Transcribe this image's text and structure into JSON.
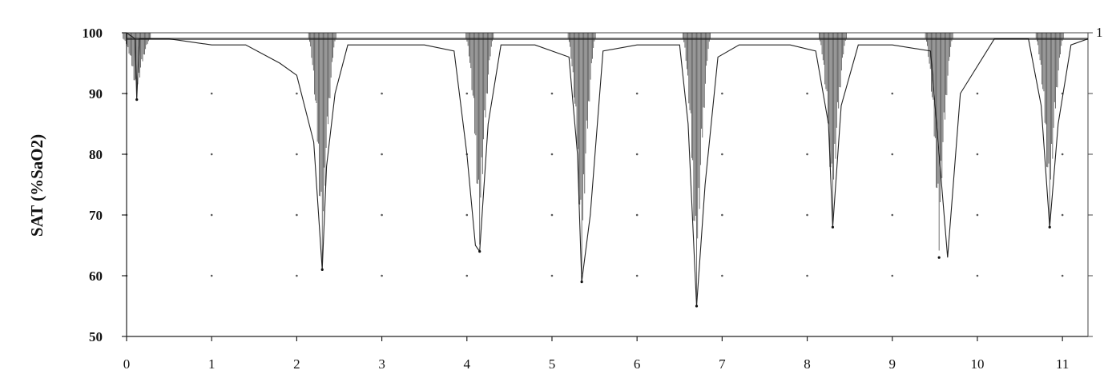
{
  "chart_data": {
    "type": "line",
    "title": "",
    "xlabel": "",
    "ylabel": "SAT (%SaO2)",
    "xlim": [
      0,
      11.3
    ],
    "ylim": [
      50,
      100
    ],
    "x_ticks": [
      "0",
      "1",
      "2",
      "3",
      "4",
      "5",
      "6",
      "7",
      "8",
      "9",
      "10",
      "11"
    ],
    "y_ticks": [
      "50",
      "60",
      "70",
      "80",
      "90",
      "100"
    ],
    "right_axis_label": "1",
    "grid": "dotted",
    "baseline_saturation": 99,
    "desaturation_events": [
      {
        "x": 0.12,
        "min": 89
      },
      {
        "x": 2.3,
        "min": 61
      },
      {
        "x": 4.15,
        "min": 64
      },
      {
        "x": 5.35,
        "min": 59
      },
      {
        "x": 6.7,
        "min": 55
      },
      {
        "x": 8.3,
        "min": 68
      },
      {
        "x": 9.55,
        "min": 63
      },
      {
        "x": 10.85,
        "min": 68
      }
    ],
    "series": [
      {
        "name": "SAT",
        "x": [
          0,
          0.1,
          0.12,
          0.15,
          0.5,
          1.0,
          1.4,
          1.8,
          2.0,
          2.2,
          2.3,
          2.35,
          2.45,
          2.6,
          3.0,
          3.5,
          3.85,
          4.0,
          4.1,
          4.15,
          4.25,
          4.4,
          4.8,
          5.2,
          5.3,
          5.35,
          5.45,
          5.6,
          6.0,
          6.5,
          6.6,
          6.7,
          6.8,
          6.95,
          7.2,
          7.8,
          8.1,
          8.25,
          8.3,
          8.4,
          8.6,
          9.0,
          9.45,
          9.55,
          9.65,
          9.8,
          10.2,
          10.6,
          10.75,
          10.85,
          10.95,
          11.1,
          11.3
        ],
        "values": [
          100,
          99,
          89,
          99,
          99,
          98,
          98,
          95,
          93,
          82,
          61,
          78,
          90,
          98,
          98,
          98,
          97,
          80,
          65,
          64,
          85,
          98,
          98,
          96,
          80,
          59,
          70,
          97,
          98,
          98,
          85,
          55,
          75,
          96,
          98,
          98,
          97,
          85,
          68,
          88,
          98,
          98,
          97,
          80,
          63,
          90,
          99,
          99,
          88,
          68,
          85,
          98,
          99
        ]
      }
    ]
  }
}
